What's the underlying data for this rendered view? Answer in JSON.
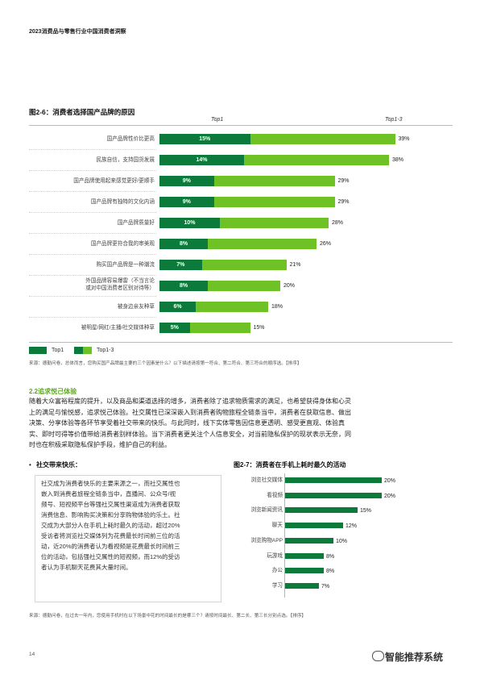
{
  "header": {
    "title": "2023消费品与零售行业中国消费者洞察"
  },
  "chart1": {
    "title": "图2-6：消费者选择国产品牌的原因",
    "top1_label": "Top1",
    "top13_label": "Top1-3",
    "note": "来源：德勤问卷，总体而言，您购买国产品牌最主要的三个因素是什么？以下描述请按第一符合、第二符合、第三符合的顺序选。【排序】"
  },
  "chart_data": [
    {
      "type": "bar",
      "title": "图2-6：消费者选择国产品牌的原因",
      "categories": [
        "国产品牌性价比更高",
        "民族自信，支持国货发展",
        "国产品牌使用起来感觉更好/更顺手",
        "国产品牌有独特的文化内涵",
        "国产品牌质量好",
        "国产品牌更符合我的审美观",
        "购买国产品牌是一种潮流",
        "外国品牌容易爆雷（不当言论或对中国消费者区别对待等）",
        "被身边亲友种草",
        "被明星/网红/主播/社交媒体种草"
      ],
      "series": [
        {
          "name": "Top1",
          "values": [
            15,
            14,
            9,
            9,
            10,
            8,
            7,
            8,
            6,
            5
          ]
        },
        {
          "name": "Top1-3",
          "values": [
            39,
            38,
            29,
            29,
            28,
            26,
            21,
            20,
            18,
            15
          ]
        }
      ],
      "value_suffix": "%",
      "xlim": [
        0,
        40
      ],
      "colors": {
        "Top1": "#0c7a3a",
        "Top1-3": "#6fc225"
      },
      "legend": "bottom-left"
    },
    {
      "type": "bar",
      "title": "图2-7：消费者在手机上耗时最久的活动",
      "categories": [
        "浏览社交媒体",
        "看视频",
        "浏览新闻资讯",
        "聊天",
        "浏览购物APP",
        "玩游戏",
        "办公",
        "学习"
      ],
      "values": [
        20,
        20,
        15,
        12,
        10,
        8,
        8,
        7
      ],
      "value_suffix": "%",
      "xlim": [
        0,
        22
      ],
      "colors": {
        "bar": "#0c7a3a"
      }
    }
  ],
  "section": {
    "heading": "2.2追求悦己体验",
    "paragraph_lines": [
      "随着大众富裕程度的提升，以及商品和渠道选择的增多，消费者除了追求物质需求的满足，也希望获得身体和心灵",
      "上的满足与愉悦感，追求悦己体验。社交属性已深深嵌入到消费者购物旅程全链条当中，消费者在获取信息、做出",
      "决策、分享体验等各环节享受着社交带来的快乐。与此同时，线下实体零售因信息更透明、感受更直观、体验真",
      "实、即时可得等价值带给消费者别样体验。当下消费者更关注个人信息安全，对当前隐私保护的现状表示无奈，同",
      "时也在积极采取隐私保护手段，维护自己的利益。"
    ]
  },
  "social": {
    "heading": "社交带来快乐：",
    "lines": [
      "社交成为消费者快乐的主要来源之一，而社交属性也",
      "嵌入到消费者旅程全链条当中，直播间、公众号/视",
      "频号、短视频平台等强社交属性渠道成为消费者获取",
      "消费信息、影响购买决策和分享购物体验的乐土。社",
      "交成为大部分人在手机上耗时最久的活动，超过20%",
      "受访者将浏览社交媒体列为花费最长时间前三位的活",
      "动，近20%的消费者认为看视频是花费最长时间前三",
      "位的活动，包括强社交属性的短视频，而12%的受访",
      "者认为手机聊天花费其大量时间。"
    ]
  },
  "chart2": {
    "title": "图2-7：消费者在手机上耗时最久的活动",
    "note": "来源：德勤问卷，在过去一年内，您使用手机时在以下场景中花的时间最长的是哪三个？请按时间最长、第二长、第三长分别点选。【排序】"
  },
  "footer": {
    "page_number": "14",
    "watermark": "智能推荐系统"
  }
}
